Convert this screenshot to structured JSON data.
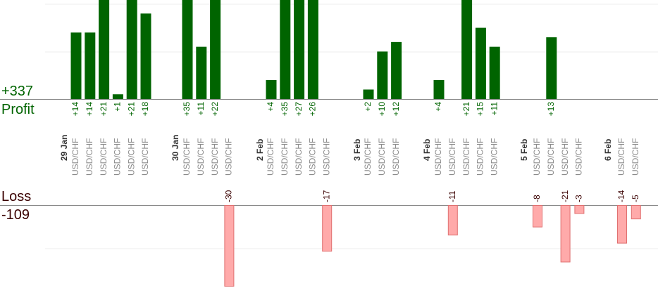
{
  "summary": {
    "profit_total": "+337",
    "profit_label": "Profit",
    "loss_label": "Loss",
    "loss_total": "-109"
  },
  "chart_data": {
    "type": "bar",
    "title": "",
    "subtitle": "",
    "xlabel": "",
    "ylabel": "",
    "profit_ylim": [
      0,
      21
    ],
    "loss_ylim": [
      0,
      30
    ],
    "grid": true,
    "legend": "none",
    "colors": {
      "profit_fill": "#006400",
      "profit_text": "#006400",
      "loss_fill": "#ffaaaa",
      "loss_stroke": "#e07070",
      "loss_text": "#3a0000",
      "pair_text": "#8a8a8a",
      "date_text": "#333333",
      "axis": "#888888",
      "grid": "#eeeeee"
    },
    "groups": [
      {
        "date": "29 Jan",
        "trades": [
          {
            "pair": "USD/CHF",
            "value": 14,
            "label": "+14"
          },
          {
            "pair": "USD/CHF",
            "value": 14,
            "label": "+14"
          },
          {
            "pair": "USD/CHF",
            "value": 21,
            "label": "+21"
          },
          {
            "pair": "USD/CHF",
            "value": 1,
            "label": "+1"
          },
          {
            "pair": "USD/CHF",
            "value": 21,
            "label": "+21"
          },
          {
            "pair": "USD/CHF",
            "value": 18,
            "label": "+18"
          }
        ]
      },
      {
        "date": "30 Jan",
        "trades": [
          {
            "pair": "USD/CHF",
            "value": 35,
            "label": "+35"
          },
          {
            "pair": "USD/CHF",
            "value": 11,
            "label": "+11"
          },
          {
            "pair": "USD/CHF",
            "value": 22,
            "label": "+22"
          },
          {
            "pair": "USD/CHF",
            "value": -30,
            "label": "-30"
          }
        ]
      },
      {
        "date": "2 Feb",
        "trades": [
          {
            "pair": "USD/CHF",
            "value": 4,
            "label": "+4"
          },
          {
            "pair": "USD/CHF",
            "value": 35,
            "label": "+35"
          },
          {
            "pair": "USD/CHF",
            "value": 27,
            "label": "+27"
          },
          {
            "pair": "USD/CHF",
            "value": 26,
            "label": "+26"
          },
          {
            "pair": "USD/CHF",
            "value": -17,
            "label": "-17"
          }
        ]
      },
      {
        "date": "3 Feb",
        "trades": [
          {
            "pair": "USD/CHF",
            "value": 2,
            "label": "+2"
          },
          {
            "pair": "USD/CHF",
            "value": 10,
            "label": "+10"
          },
          {
            "pair": "USD/CHF",
            "value": 12,
            "label": "+12"
          }
        ]
      },
      {
        "date": "4 Feb",
        "trades": [
          {
            "pair": "USD/CHF",
            "value": 4,
            "label": "+4"
          },
          {
            "pair": "USD/CHF",
            "value": -11,
            "label": "-11"
          },
          {
            "pair": "USD/CHF",
            "value": 21,
            "label": "+21"
          },
          {
            "pair": "USD/CHF",
            "value": 15,
            "label": "+15"
          },
          {
            "pair": "USD/CHF",
            "value": 11,
            "label": "+11"
          }
        ]
      },
      {
        "date": "5 Feb",
        "trades": [
          {
            "pair": "USD/CHF",
            "value": -8,
            "label": "-8"
          },
          {
            "pair": "USD/CHF",
            "value": 13,
            "label": "+13"
          },
          {
            "pair": "USD/CHF",
            "value": -21,
            "label": "-21"
          },
          {
            "pair": "USD/CHF",
            "value": -3,
            "label": "-3"
          }
        ]
      },
      {
        "date": "6 Feb",
        "trades": [
          {
            "pair": "USD/CHF",
            "value": -14,
            "label": "-14"
          },
          {
            "pair": "USD/CHF",
            "value": -5,
            "label": "-5"
          }
        ]
      }
    ]
  }
}
